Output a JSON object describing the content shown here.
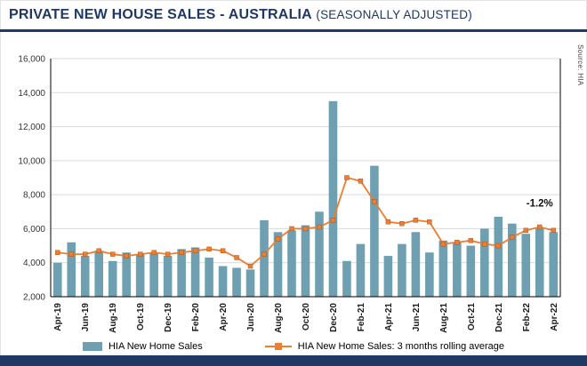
{
  "header": {
    "title": "PRIVATE NEW HOUSE SALES -  AUSTRALIA",
    "subtitle": "(SEASONALLY ADJUSTED)"
  },
  "source_label": "Source: HIA",
  "annotation": {
    "text": "-1.2%"
  },
  "legend": {
    "bars_label": "HIA New Home Sales",
    "line_label": "HIA New Home Sales: 3 months rolling average"
  },
  "colors": {
    "navy": "#1F3864",
    "bar": "#6FA0B2",
    "line": "#ED7D31",
    "grid": "#D9D9D9",
    "axis": "#000000"
  },
  "chart_data": {
    "type": "bar",
    "title": "PRIVATE NEW HOUSE SALES - AUSTRALIA (SEASONALLY ADJUSTED)",
    "xlabel": "",
    "ylabel": "",
    "ylim": [
      2000,
      16000
    ],
    "ytick_step": 2000,
    "ytick_labels": [
      "2,000",
      "4,000",
      "6,000",
      "8,000",
      "10,000",
      "12,000",
      "14,000",
      "16,000"
    ],
    "xtick_every": 2,
    "xtick_labels": [
      "Apr-19",
      "Jun-19",
      "Aug-19",
      "Oct-19",
      "Dec-19",
      "Feb-20",
      "Apr-20",
      "Jun-20",
      "Aug-20",
      "Oct-20",
      "Dec-20",
      "Feb-21",
      "Apr-21",
      "Jun-21",
      "Aug-21",
      "Oct-21",
      "Dec-21",
      "Feb-22",
      "Apr-22"
    ],
    "grid": true,
    "legend_position": "bottom",
    "categories": [
      "Apr-19",
      "May-19",
      "Jun-19",
      "Jul-19",
      "Aug-19",
      "Sep-19",
      "Oct-19",
      "Nov-19",
      "Dec-19",
      "Jan-20",
      "Feb-20",
      "Mar-20",
      "Apr-20",
      "May-20",
      "Jun-20",
      "Jul-20",
      "Aug-20",
      "Sep-20",
      "Oct-20",
      "Nov-20",
      "Dec-20",
      "Jan-21",
      "Feb-21",
      "Mar-21",
      "Apr-21",
      "May-21",
      "Jun-21",
      "Jul-21",
      "Aug-21",
      "Sep-21",
      "Oct-21",
      "Nov-21",
      "Dec-21",
      "Jan-22",
      "Feb-22",
      "Mar-22",
      "Apr-22"
    ],
    "series": [
      {
        "name": "HIA New Home Sales",
        "type": "bar",
        "values": [
          4000,
          5200,
          4400,
          4700,
          4100,
          4600,
          4500,
          4600,
          4400,
          4800,
          4900,
          4300,
          3800,
          3700,
          3600,
          6500,
          5800,
          5900,
          6200,
          7000,
          13500,
          4100,
          5100,
          9700,
          4400,
          5100,
          5800,
          4600,
          5300,
          5200,
          5000,
          6000,
          6700,
          6300,
          5700,
          6000,
          5800
        ]
      },
      {
        "name": "HIA New Home Sales: 3 months rolling average",
        "type": "line",
        "values": [
          4600,
          4500,
          4500,
          4700,
          4500,
          4400,
          4500,
          4600,
          4500,
          4600,
          4700,
          4800,
          4700,
          4300,
          3800,
          4500,
          5400,
          6000,
          6000,
          6100,
          6500,
          9000,
          8800,
          7600,
          6400,
          6300,
          6500,
          6400,
          5100,
          5200,
          5300,
          5100,
          5000,
          5500,
          5900,
          6100,
          5900
        ]
      }
    ]
  }
}
